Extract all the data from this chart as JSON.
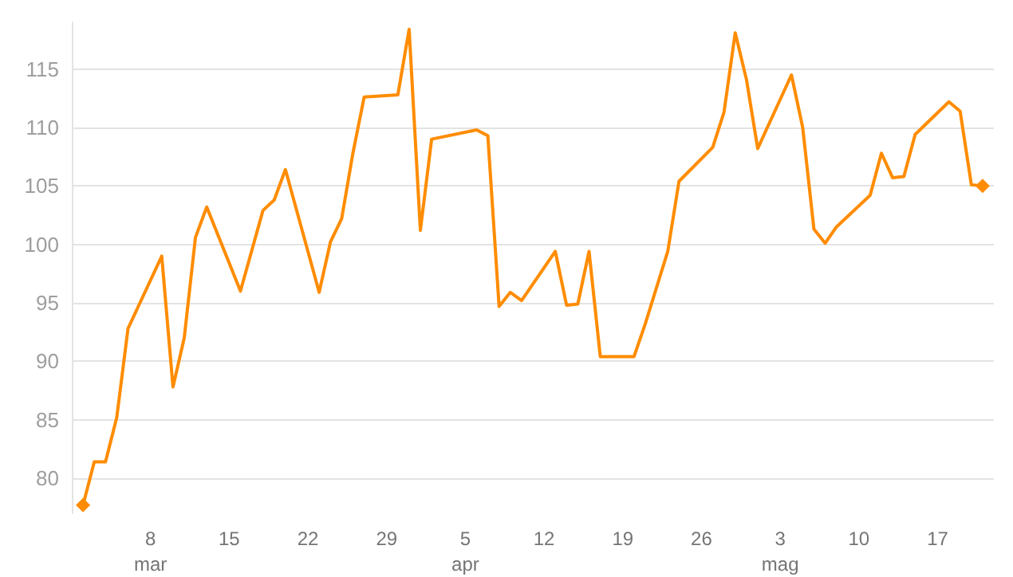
{
  "chart_data": {
    "type": "line",
    "x": [
      "--03-02",
      "--03-03",
      "--03-04",
      "--03-05",
      "--03-06",
      "--03-09",
      "--03-10",
      "--03-11",
      "--03-12",
      "--03-13",
      "--03-16",
      "--03-18",
      "--03-19",
      "--03-20",
      "--03-23",
      "--03-24",
      "--03-25",
      "--03-26",
      "--03-27",
      "--03-30",
      "--03-31",
      "--04-01",
      "--04-02",
      "--04-06",
      "--04-07",
      "--04-08",
      "--04-09",
      "--04-10",
      "--04-13",
      "--04-14",
      "--04-15",
      "--04-16",
      "--04-17",
      "--04-20",
      "--04-21",
      "--04-23",
      "--04-24",
      "--04-27",
      "--04-28",
      "--04-29",
      "--04-30",
      "--05-01",
      "--05-04",
      "--05-05",
      "--05-06",
      "--05-07",
      "--05-08",
      "--05-11",
      "--05-12",
      "--05-13",
      "--05-14",
      "--05-15",
      "--05-18",
      "--05-19",
      "--05-20",
      "--05-21"
    ],
    "series": [
      {
        "color": "#ff8c00",
        "values": [
          77.7,
          81.4,
          81.4,
          85.2,
          92.8,
          99.0,
          87.8,
          92.0,
          100.6,
          103.2,
          96.0,
          102.9,
          103.8,
          106.4,
          95.9,
          100.2,
          102.2,
          107.8,
          112.6,
          112.8,
          118.4,
          101.2,
          109.0,
          109.8,
          109.3,
          94.7,
          95.9,
          95.2,
          99.4,
          94.8,
          94.9,
          99.4,
          90.4,
          90.4,
          93.2,
          99.4,
          105.4,
          108.3,
          111.3,
          118.1,
          114.1,
          108.2,
          114.5,
          110.0,
          101.3,
          100.1,
          101.5,
          104.2,
          107.8,
          105.7,
          105.8,
          109.4,
          112.2,
          111.4,
          105.1,
          105.0
        ]
      }
    ],
    "xlim": [
      "--03-01",
      "--05-22"
    ],
    "xticks": [
      {
        "value": "--03-08",
        "label": "8\nmar"
      },
      {
        "value": "--03-15",
        "label": "15"
      },
      {
        "value": "--03-22",
        "label": "22"
      },
      {
        "value": "--03-29",
        "label": "29"
      },
      {
        "value": "--04-05",
        "label": "5\napr"
      },
      {
        "value": "--04-12",
        "label": "12"
      },
      {
        "value": "--04-19",
        "label": "19"
      },
      {
        "value": "--04-26",
        "label": "26"
      },
      {
        "value": "--05-03",
        "label": "3\nmag"
      },
      {
        "value": "--05-10",
        "label": "10"
      },
      {
        "value": "--05-17",
        "label": "17"
      }
    ],
    "ylim": [
      77,
      119
    ],
    "yticks": [
      80,
      85,
      90,
      95,
      100,
      105,
      110,
      115
    ],
    "grid": "y",
    "line_style": "solid"
  }
}
